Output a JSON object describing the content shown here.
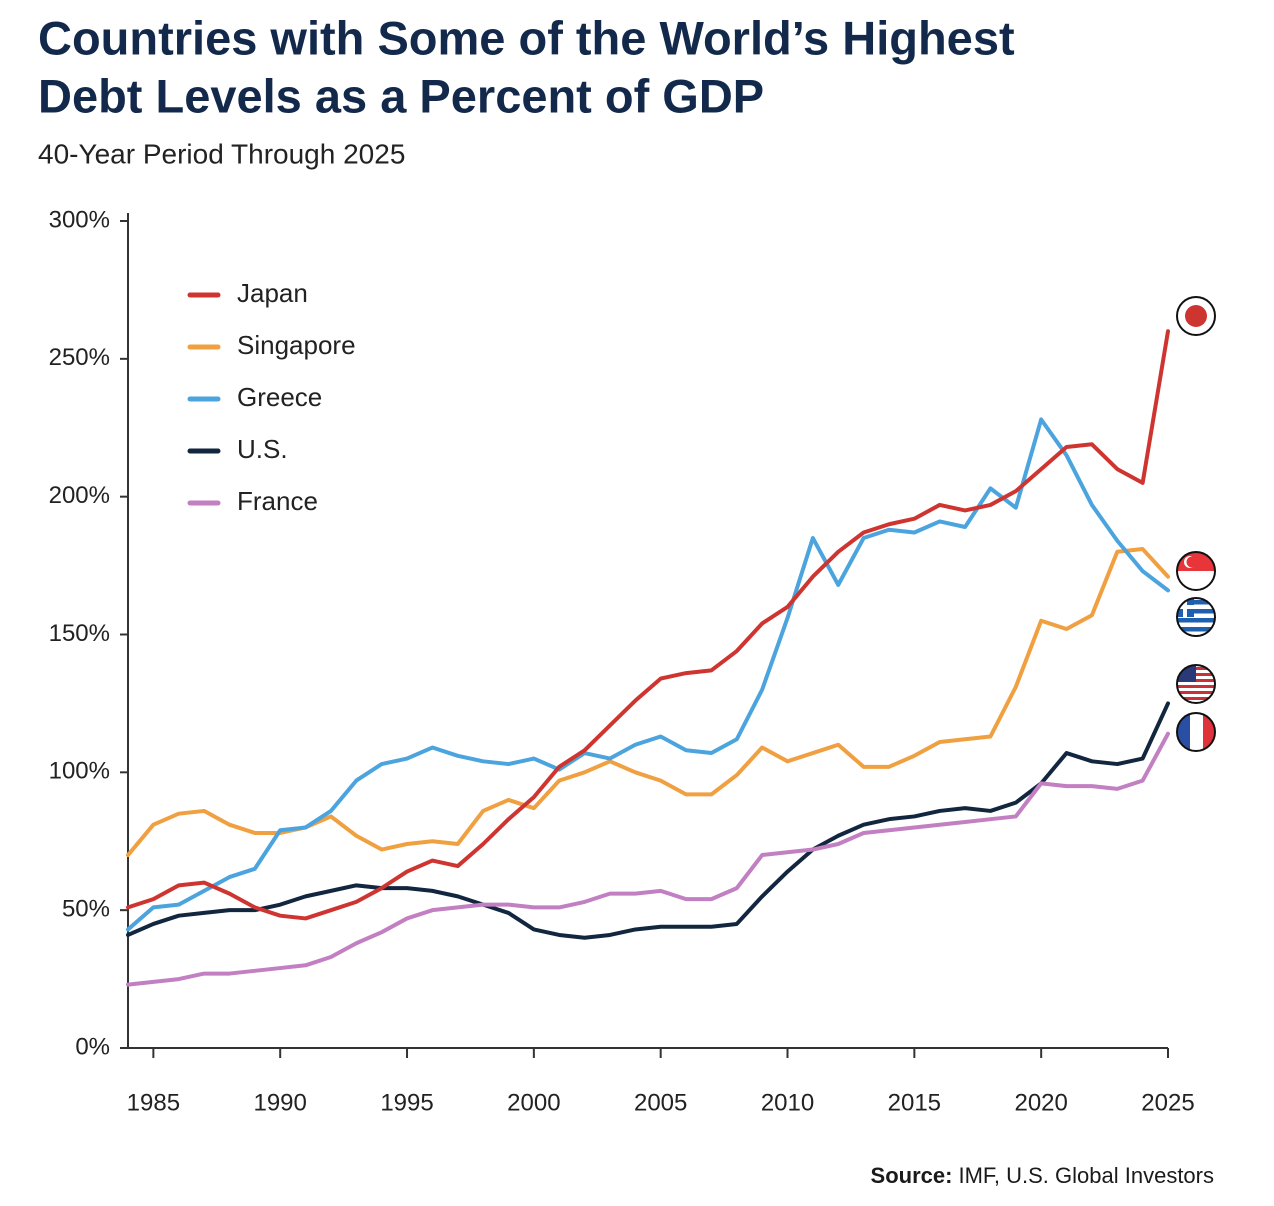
{
  "chart_data": {
    "type": "line",
    "title": [
      "Countries with Some of the World’s Highest",
      "Debt Levels as a Percent of GDP"
    ],
    "subtitle": "40-Year Period Through 2025",
    "source_label": "Source:",
    "source": "IMF, U.S. Global Investors",
    "x": [
      1984,
      1985,
      1986,
      1987,
      1988,
      1989,
      1990,
      1991,
      1992,
      1993,
      1994,
      1995,
      1996,
      1997,
      1998,
      1999,
      2000,
      2001,
      2002,
      2003,
      2004,
      2005,
      2006,
      2007,
      2008,
      2009,
      2010,
      2011,
      2012,
      2013,
      2014,
      2015,
      2016,
      2017,
      2018,
      2019,
      2020,
      2021,
      2022,
      2023,
      2024,
      2025
    ],
    "xlim": [
      1984,
      2025
    ],
    "xticks": [
      1985,
      1990,
      1995,
      2000,
      2005,
      2010,
      2015,
      2020,
      2025
    ],
    "ylim": [
      0,
      300
    ],
    "yticks": [
      {
        "value": 0,
        "label": "0%"
      },
      {
        "value": 50,
        "label": "50%"
      },
      {
        "value": 100,
        "label": "100%"
      },
      {
        "value": 150,
        "label": "150%"
      },
      {
        "value": 200,
        "label": "200%"
      },
      {
        "value": 250,
        "label": "250%"
      },
      {
        "value": 300,
        "label": "300%"
      }
    ],
    "legend": "upper left",
    "series": [
      {
        "name": "Japan",
        "color": "#cf3530",
        "values": [
          51,
          54,
          59,
          60,
          56,
          51,
          48,
          47,
          50,
          53,
          58,
          64,
          68,
          66,
          74,
          83,
          91,
          102,
          108,
          117,
          126,
          134,
          136,
          137,
          144,
          154,
          160,
          171,
          180,
          187,
          190,
          192,
          197,
          195,
          197,
          202,
          210,
          218,
          219,
          210,
          205,
          260
        ]
      },
      {
        "name": "Singapore",
        "color": "#f0a040",
        "values": [
          70,
          81,
          85,
          86,
          81,
          78,
          78,
          80,
          84,
          77,
          72,
          74,
          75,
          74,
          86,
          90,
          87,
          97,
          100,
          104,
          100,
          97,
          92,
          92,
          99,
          109,
          104,
          107,
          110,
          102,
          102,
          106,
          111,
          112,
          113,
          131,
          155,
          152,
          157,
          180,
          181,
          171
        ]
      },
      {
        "name": "Greece",
        "color": "#4ba4de",
        "values": [
          43,
          51,
          52,
          57,
          62,
          65,
          79,
          80,
          86,
          97,
          103,
          105,
          109,
          106,
          104,
          103,
          105,
          101,
          107,
          105,
          110,
          113,
          108,
          107,
          112,
          130,
          156,
          185,
          168,
          185,
          188,
          187,
          191,
          189,
          203,
          196,
          228,
          215,
          197,
          184,
          173,
          166
        ]
      },
      {
        "name": "U.S.",
        "color": "#13263f",
        "values": [
          41,
          45,
          48,
          49,
          50,
          50,
          52,
          55,
          57,
          59,
          58,
          58,
          57,
          55,
          52,
          49,
          43,
          41,
          40,
          41,
          43,
          44,
          44,
          44,
          45,
          55,
          64,
          72,
          77,
          81,
          83,
          84,
          86,
          87,
          86,
          89,
          96,
          107,
          104,
          103,
          105,
          125
        ]
      },
      {
        "name": "France",
        "color": "#c27fc2",
        "values": [
          23,
          24,
          25,
          27,
          27,
          28,
          29,
          30,
          33,
          38,
          42,
          47,
          50,
          51,
          52,
          52,
          51,
          51,
          53,
          56,
          56,
          57,
          54,
          54,
          58,
          70,
          71,
          72,
          74,
          78,
          79,
          80,
          81,
          82,
          83,
          84,
          96,
          95,
          95,
          94,
          97,
          114
        ]
      }
    ]
  }
}
